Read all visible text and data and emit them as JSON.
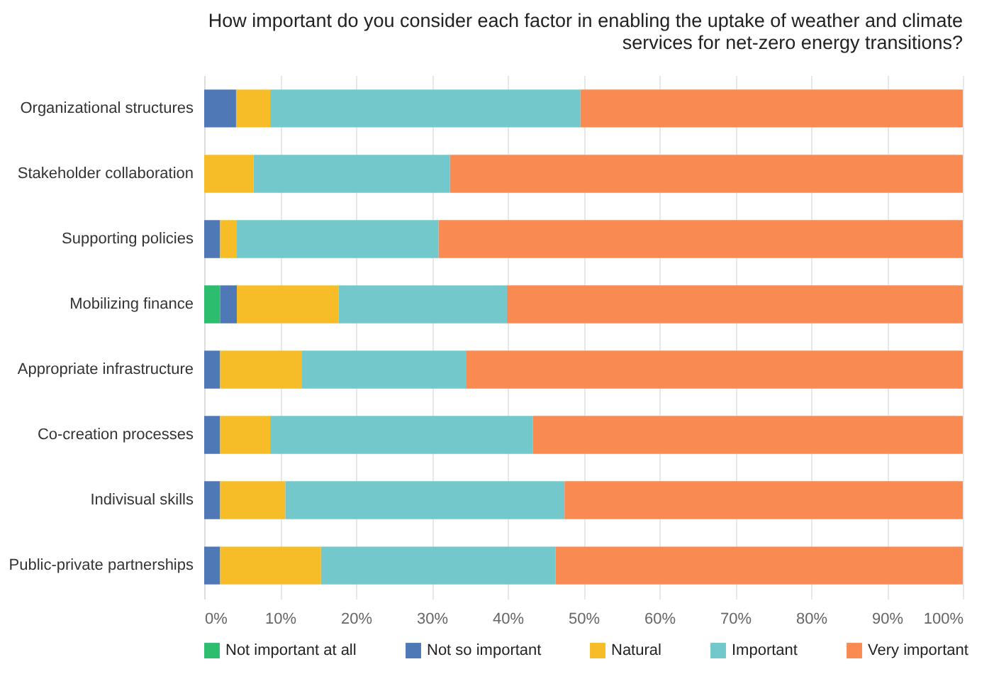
{
  "chart_data": {
    "type": "bar",
    "orientation": "horizontal",
    "stacked": true,
    "title": "How important do you consider each factor in enabling the uptake of weather and climate services for net-zero energy transitions?",
    "categories": [
      "Organizational structures",
      "Stakeholder collaboration",
      "Supporting policies",
      "Mobilizing finance",
      "Appropriate infrastructure",
      "Co-creation processes",
      "Indivisual skills",
      "Public-private partnerships"
    ],
    "series": [
      {
        "name": "Not important at all",
        "color": "#2dbd6e",
        "values": [
          null,
          null,
          null,
          2.1,
          null,
          null,
          null,
          null
        ]
      },
      {
        "name": "Not so important",
        "color": "#4e79b6",
        "values": [
          4.2,
          null,
          2.1,
          2.2,
          2.1,
          2.1,
          2.1,
          2.1
        ]
      },
      {
        "name": "Natural",
        "color": "#f7bd28",
        "values": [
          4.5,
          6.5,
          2.2,
          13.4,
          10.8,
          6.6,
          8.6,
          13.3
        ]
      },
      {
        "name": "Important",
        "color": "#72c8cb",
        "values": [
          40.9,
          25.9,
          26.6,
          22.2,
          21.6,
          34.6,
          36.8,
          30.9
        ]
      },
      {
        "name": "Very important",
        "color": "#f98a52",
        "values": [
          50.4,
          67.6,
          69.1,
          60.1,
          65.5,
          56.7,
          52.5,
          53.7
        ]
      }
    ],
    "xlim": [
      0,
      100
    ],
    "xticks": [
      {
        "value": 0,
        "label": "0%"
      },
      {
        "value": 10,
        "label": "10%"
      },
      {
        "value": 20,
        "label": "20%"
      },
      {
        "value": 30,
        "label": "30%"
      },
      {
        "value": 40,
        "label": "40%"
      },
      {
        "value": 50,
        "label": "50%"
      },
      {
        "value": 60,
        "label": "60%"
      },
      {
        "value": 70,
        "label": "70%"
      },
      {
        "value": 80,
        "label": "80%"
      },
      {
        "value": 90,
        "label": "90%"
      },
      {
        "value": 100,
        "label": "100%"
      }
    ],
    "grid": "x",
    "legend": "bottom"
  }
}
